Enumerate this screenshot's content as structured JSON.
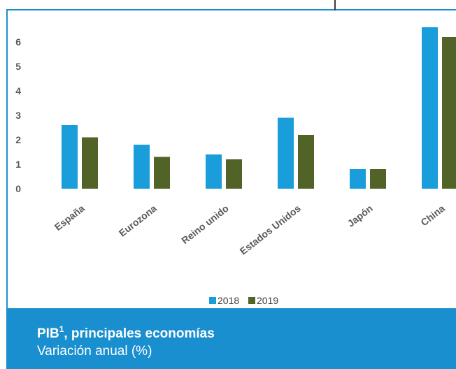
{
  "chart_data": {
    "type": "bar",
    "categories": [
      "España",
      "Eurozona",
      "Reino unido",
      "Estados Unidos",
      "Japón",
      "China"
    ],
    "series": [
      {
        "name": "2018",
        "color": "#1a9ddb",
        "values": [
          2.6,
          1.8,
          1.4,
          2.9,
          0.8,
          6.6
        ]
      },
      {
        "name": "2019",
        "color": "#526327",
        "values": [
          2.1,
          1.3,
          1.2,
          2.2,
          0.8,
          6.2
        ]
      }
    ],
    "yticks": [
      "0",
      "1",
      "2",
      "3",
      "4",
      "5",
      "6"
    ],
    "ylim": [
      0,
      6.6
    ],
    "grid": false,
    "legend_position": "bottom"
  },
  "caption": {
    "title": "PIB",
    "title_sup": "1",
    "title_rest": ", principales economías",
    "subtitle": "Variación anual (%)"
  },
  "colors": {
    "accent": "#1a8fd0"
  }
}
